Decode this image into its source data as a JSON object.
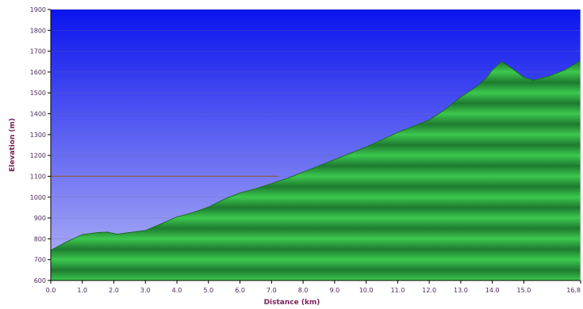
{
  "chart_data": {
    "type": "area",
    "title": "",
    "xlabel": "Distance (km)",
    "ylabel": "Elevation (m)",
    "xlim": [
      0,
      16.8
    ],
    "ylim": [
      600,
      1900
    ],
    "x_ticks": [
      0,
      1,
      2,
      3,
      4,
      5,
      6,
      7,
      8,
      9,
      10,
      11,
      12,
      13,
      14,
      15,
      16.8
    ],
    "x_tick_labels": [
      "0.0",
      "1.0",
      "2.0",
      "3.0",
      "4.0",
      "5.0",
      "6.0",
      "7.0",
      "8.0",
      "9.0",
      "10.0",
      "11.0",
      "12.0",
      "13.0",
      "14.0",
      "15.0",
      "16.8"
    ],
    "y_ticks": [
      600,
      700,
      800,
      900,
      1000,
      1100,
      1200,
      1300,
      1400,
      1500,
      1600,
      1700,
      1800,
      1900
    ],
    "y_tick_labels": [
      "600",
      "700",
      "800",
      "900",
      "1000",
      "1100",
      "1200",
      "1300",
      "1400",
      "1500",
      "1600",
      "1700",
      "1800",
      "1900"
    ],
    "grid": true,
    "legend": "none",
    "reference_line": {
      "y": 1100,
      "x_end": 7.2,
      "color": "#8a5a3a"
    },
    "colors": {
      "sky_top": "#0a14ee",
      "sky_bottom": "#b8b8f6",
      "area_light": "#3cc84e",
      "area_dark": "#1e7a30",
      "area_edge": "#1a6a28",
      "axis": "#000000",
      "grid": "#6a6aa8"
    },
    "series": [
      {
        "x": [
          0,
          0.5,
          1.0,
          1.5,
          1.8,
          2.1,
          2.5,
          3.0,
          3.5,
          4.0,
          4.5,
          5.0,
          5.5,
          6.0,
          6.5,
          7.0,
          7.5,
          8.0,
          8.5,
          9.0,
          9.5,
          10.0,
          10.5,
          11.0,
          11.5,
          12.0,
          12.5,
          13.0,
          13.5,
          13.8,
          14.0,
          14.3,
          14.6,
          15.0,
          15.3,
          15.8,
          16.3,
          16.8
        ],
        "values": [
          745,
          785,
          820,
          830,
          832,
          822,
          830,
          840,
          872,
          905,
          925,
          952,
          990,
          1020,
          1040,
          1065,
          1090,
          1120,
          1150,
          1180,
          1210,
          1240,
          1275,
          1310,
          1340,
          1370,
          1420,
          1480,
          1530,
          1570,
          1610,
          1650,
          1620,
          1575,
          1560,
          1580,
          1610,
          1655
        ]
      }
    ]
  }
}
